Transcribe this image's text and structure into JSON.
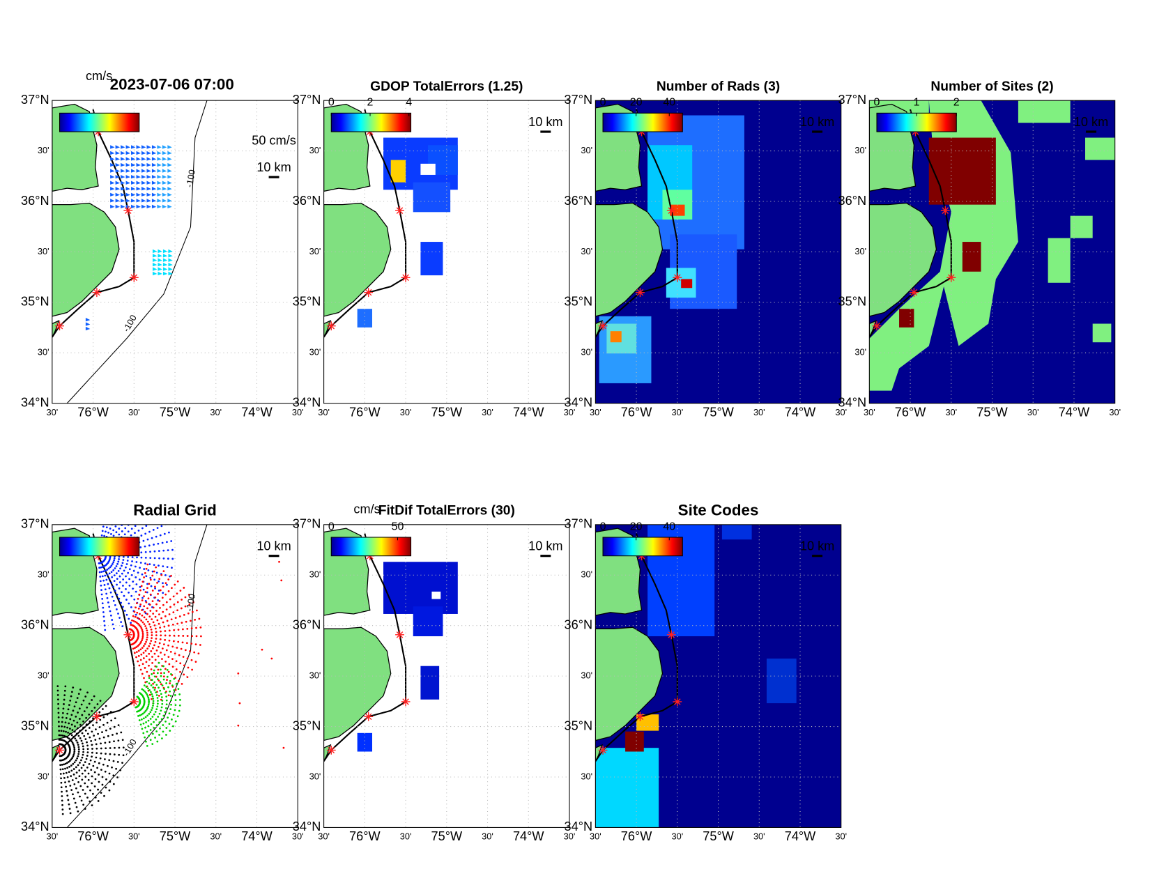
{
  "lat_labels": [
    "37°N",
    "30'",
    "36°N",
    "30'",
    "35°N",
    "30'",
    "34°N"
  ],
  "lon_labels": [
    "30'",
    "76°W",
    "30'",
    "75°W",
    "30'",
    "74°W",
    "30'"
  ],
  "panels": [
    {
      "title": "2023-07-06 07:00",
      "colorbar_units": "cm/s",
      "vector_scale": "50 cm/s",
      "scale_label": "10 km",
      "contour_labels": [
        "-100",
        "-100"
      ]
    },
    {
      "title": "GDOP TotalErrors (1.25)",
      "colorbar_ticks": [
        0,
        2,
        4
      ],
      "colorbar_lim": [
        0,
        4.1
      ],
      "scale_label": "10 km"
    },
    {
      "title": "Number of Rads (3)",
      "colorbar_ticks": [
        0,
        20,
        40
      ],
      "colorbar_lim": [
        0,
        48
      ],
      "scale_label": "10 km"
    },
    {
      "title": "Number of Sites (2)",
      "colorbar_ticks": [
        0,
        1,
        2
      ],
      "colorbar_lim": [
        0,
        2
      ],
      "scale_label": "10 km"
    },
    {
      "title": "Radial Grid",
      "scale_label": "10 km",
      "contour_labels": [
        "-100",
        "-100"
      ]
    },
    {
      "title": "FitDif TotalErrors (30)",
      "colorbar_units": "cm/s",
      "colorbar_ticks": [
        0,
        50
      ],
      "colorbar_lim": [
        0,
        60
      ],
      "scale_label": "10 km"
    },
    {
      "title": "Site Codes",
      "colorbar_ticks": [
        0,
        20,
        40
      ],
      "colorbar_lim": [
        0,
        48
      ],
      "scale_label": "10 km"
    }
  ]
}
